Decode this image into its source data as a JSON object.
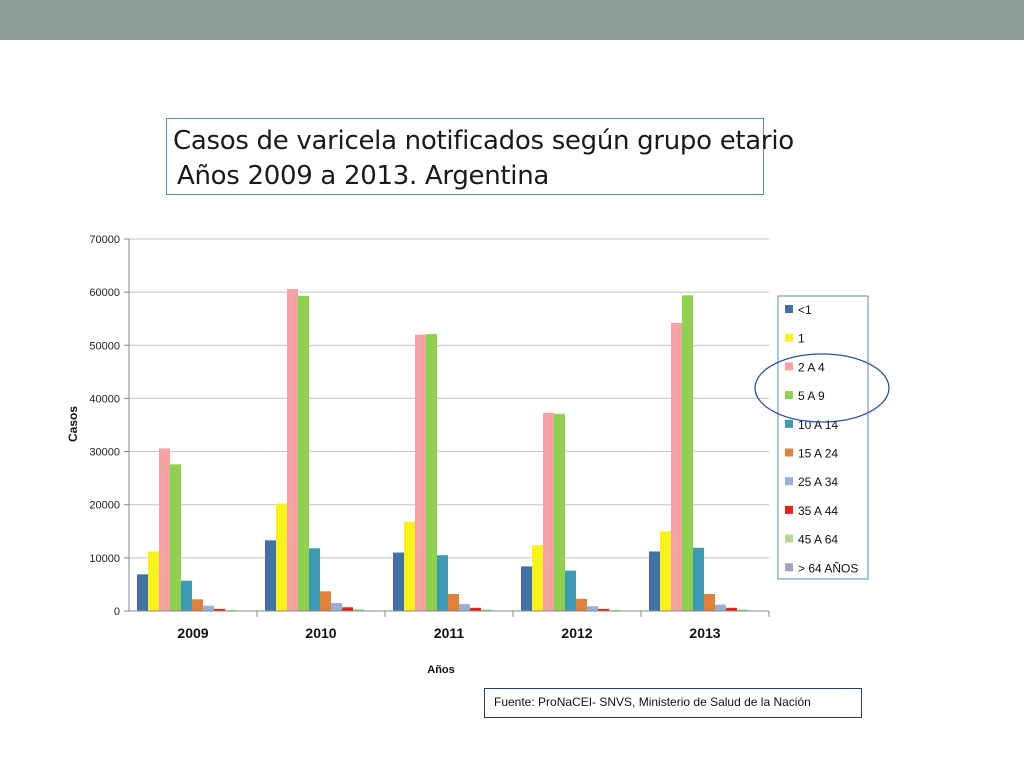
{
  "slide": {
    "band_color": "#919e97",
    "title_line1": "Casos de varicela notificados según grupo etario",
    "title_line2": "Años 2009 a 2013. Argentina",
    "source": "Fuente: ProNaCEI- SNVS, Ministerio de Salud de la Nación"
  },
  "chart_data": {
    "type": "bar",
    "xlabel": "Años",
    "ylabel": "Casos",
    "ylim": [
      0,
      70000
    ],
    "yticks": [
      0,
      10000,
      20000,
      30000,
      40000,
      50000,
      60000,
      70000
    ],
    "grid": true,
    "legend_position": "right",
    "categories": [
      "2009",
      "2010",
      "2011",
      "2012",
      "2013"
    ],
    "series": [
      {
        "name": "<1",
        "color": "#4470a8",
        "values": [
          6900,
          13300,
          11000,
          8400,
          11200
        ]
      },
      {
        "name": "1",
        "color": "#f7f21c",
        "values": [
          11200,
          20200,
          16800,
          12400,
          15000
        ]
      },
      {
        "name": "2 A 4",
        "color": "#f4a3a3",
        "values": [
          30600,
          60600,
          52000,
          37300,
          54200
        ]
      },
      {
        "name": "5 A 9",
        "color": "#8ed24e",
        "values": [
          27600,
          59300,
          52100,
          37100,
          59400
        ]
      },
      {
        "name": "10 A 14",
        "color": "#3d9bb2",
        "values": [
          5700,
          11800,
          10500,
          7600,
          11900
        ]
      },
      {
        "name": "15 A 24",
        "color": "#e0823a",
        "values": [
          2200,
          3700,
          3200,
          2300,
          3200
        ]
      },
      {
        "name": "25 A 34",
        "color": "#9aaed8",
        "values": [
          1000,
          1500,
          1300,
          900,
          1200
        ]
      },
      {
        "name": "35 A 44",
        "color": "#e8231c",
        "values": [
          400,
          700,
          600,
          400,
          600
        ]
      },
      {
        "name": "45 A 64",
        "color": "#b7d79a",
        "values": [
          200,
          350,
          300,
          200,
          300
        ]
      },
      {
        "name": "> 64 AÑOS",
        "color": "#a99cc8",
        "values": [
          60,
          100,
          90,
          60,
          80
        ]
      }
    ]
  }
}
